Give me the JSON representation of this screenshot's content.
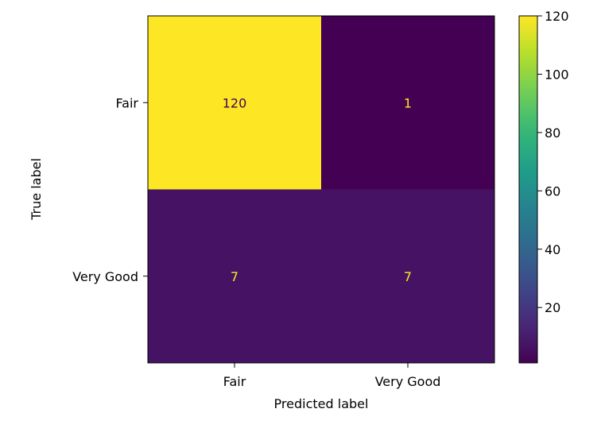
{
  "chart_data": {
    "type": "heatmap",
    "title": "",
    "xlabel": "Predicted label",
    "ylabel": "True label",
    "x_categories": [
      "Fair",
      "Very Good"
    ],
    "y_categories": [
      "Fair",
      "Very Good"
    ],
    "matrix": [
      [
        120,
        1
      ],
      [
        7,
        7
      ]
    ],
    "value_range": [
      1,
      120
    ],
    "colormap": "viridis",
    "colorbar_ticks": [
      20,
      40,
      60,
      80,
      100,
      120
    ],
    "grid": false
  },
  "colors": {
    "colormap_stops": [
      "#440154",
      "#482878",
      "#3e4989",
      "#31688e",
      "#26828e",
      "#1f9e89",
      "#35b779",
      "#6ece58",
      "#b5de2b",
      "#fde725"
    ],
    "text_on_dark": "#fde725",
    "text_on_light": "#440154"
  }
}
